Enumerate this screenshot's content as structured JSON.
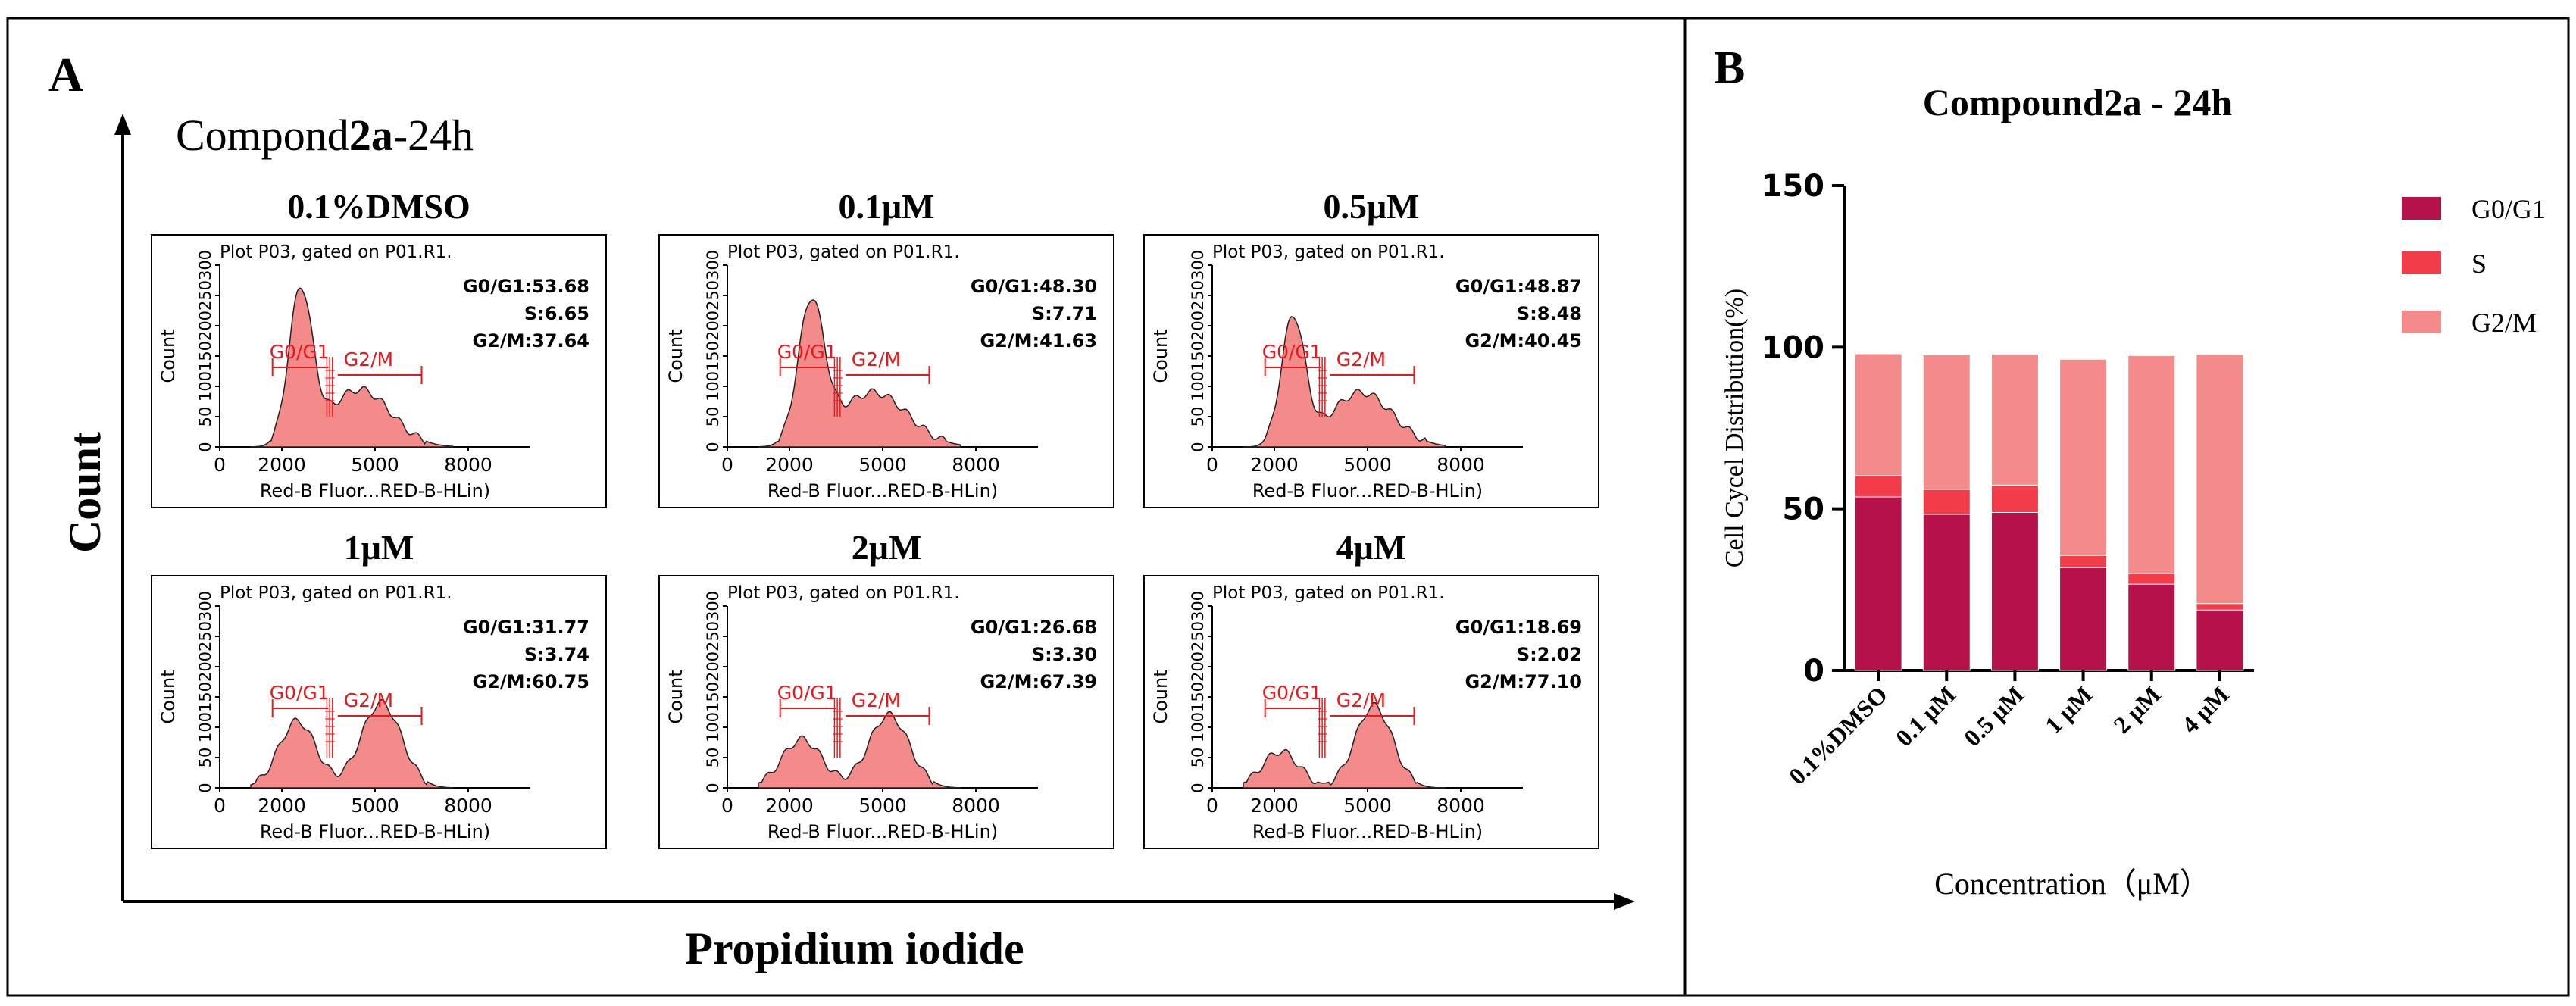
{
  "panel_a": {
    "label": "A",
    "title_pre": "Compond",
    "title_bold": "2a",
    "title_post": "-24h",
    "y_label": "Count",
    "x_label": "Propidium iodide",
    "plots": [
      {
        "title": "0.1%DMSO",
        "header": "Plot P03, gated on P01.R1.",
        "stat_g0g1": "G0/G1:53.68",
        "stat_s": "S:6.65",
        "stat_g2m": "G2/M:37.64",
        "y_axis": "Count",
        "x_axis": "Red-B Fluor...RED-B-HLin)",
        "y_ticks": [
          "0",
          "50",
          "100",
          "150",
          "200",
          "250",
          "300"
        ],
        "x_ticks": [
          "0",
          "2000",
          "5000",
          "8000"
        ],
        "gate_g0g1": "G0/G1",
        "gate_g2m": "G2/M"
      },
      {
        "title": "0.1μM",
        "header": "Plot P03, gated on P01.R1.",
        "stat_g0g1": "G0/G1:48.30",
        "stat_s": "S:7.71",
        "stat_g2m": "G2/M:41.63",
        "y_axis": "Count",
        "x_axis": "Red-B Fluor...RED-B-HLin)",
        "y_ticks": [
          "0",
          "50",
          "100",
          "150",
          "200",
          "250",
          "300"
        ],
        "x_ticks": [
          "0",
          "2000",
          "5000",
          "8000"
        ],
        "gate_g0g1": "G0/G1",
        "gate_g2m": "G2/M"
      },
      {
        "title": "0.5μM",
        "header": "Plot P03, gated on P01.R1.",
        "stat_g0g1": "G0/G1:48.87",
        "stat_s": "S:8.48",
        "stat_g2m": "G2/M:40.45",
        "y_axis": "Count",
        "x_axis": "Red-B Fluor...RED-B-HLin)",
        "y_ticks": [
          "0",
          "50",
          "100",
          "150",
          "200",
          "250",
          "300"
        ],
        "x_ticks": [
          "0",
          "2000",
          "5000",
          "8000"
        ],
        "gate_g0g1": "G0/G1",
        "gate_g2m": "G2/M"
      },
      {
        "title": "1μM",
        "header": "Plot P03, gated on P01.R1.",
        "stat_g0g1": "G0/G1:31.77",
        "stat_s": "S:3.74",
        "stat_g2m": "G2/M:60.75",
        "y_axis": "Count",
        "x_axis": "Red-B Fluor...RED-B-HLin)",
        "y_ticks": [
          "0",
          "50",
          "100",
          "150",
          "200",
          "250",
          "300"
        ],
        "x_ticks": [
          "0",
          "2000",
          "5000",
          "8000"
        ],
        "gate_g0g1": "G0/G1",
        "gate_g2m": "G2/M"
      },
      {
        "title": "2μM",
        "header": "Plot P03, gated on P01.R1.",
        "stat_g0g1": "G0/G1:26.68",
        "stat_s": "S:3.30",
        "stat_g2m": "G2/M:67.39",
        "y_axis": "Count",
        "x_axis": "Red-B Fluor...RED-B-HLin)",
        "y_ticks": [
          "0",
          "50",
          "100",
          "150",
          "200",
          "250",
          "300"
        ],
        "x_ticks": [
          "0",
          "2000",
          "5000",
          "8000"
        ],
        "gate_g0g1": "G0/G1",
        "gate_g2m": "G2/M"
      },
      {
        "title": "4μM",
        "header": "Plot P03, gated on P01.R1.",
        "stat_g0g1": "G0/G1:18.69",
        "stat_s": "S:2.02",
        "stat_g2m": "G2/M:77.10",
        "y_axis": "Count",
        "x_axis": "Red-B Fluor...RED-B-HLin)",
        "y_ticks": [
          "0",
          "50",
          "100",
          "150",
          "200",
          "250",
          "300"
        ],
        "x_ticks": [
          "0",
          "2000",
          "5000",
          "8000"
        ],
        "gate_g0g1": "G0/G1",
        "gate_g2m": "G2/M"
      }
    ]
  },
  "panel_b": {
    "label": "B"
  },
  "colors": {
    "g0g1": "#b5114a",
    "s": "#f23c4a",
    "g2m": "#f48b8b",
    "hist_fill": "#f48b8b",
    "gate": "#e8191c"
  },
  "chart_data": {
    "type": "bar",
    "stacked": true,
    "title": "Compound2a - 24h",
    "xlabel": "Concentration（μM）",
    "ylabel": "Cell Cycel Distribution(%)",
    "ylim": [
      0,
      150
    ],
    "yticks": [
      "0",
      "50",
      "100",
      "150"
    ],
    "categories": [
      "0.1%DMSO",
      "0.1 μM",
      "0.5 μM",
      "1 μM",
      "2 μM",
      "4 μM"
    ],
    "series": [
      {
        "name": "G0/G1",
        "values": [
          53.68,
          48.3,
          48.87,
          31.77,
          26.68,
          18.69
        ]
      },
      {
        "name": "S",
        "values": [
          6.65,
          7.71,
          8.48,
          3.74,
          3.3,
          2.02
        ]
      },
      {
        "name": "G2/M",
        "values": [
          37.64,
          41.63,
          40.45,
          60.75,
          67.39,
          77.1
        ]
      }
    ],
    "legend": "top-right"
  }
}
